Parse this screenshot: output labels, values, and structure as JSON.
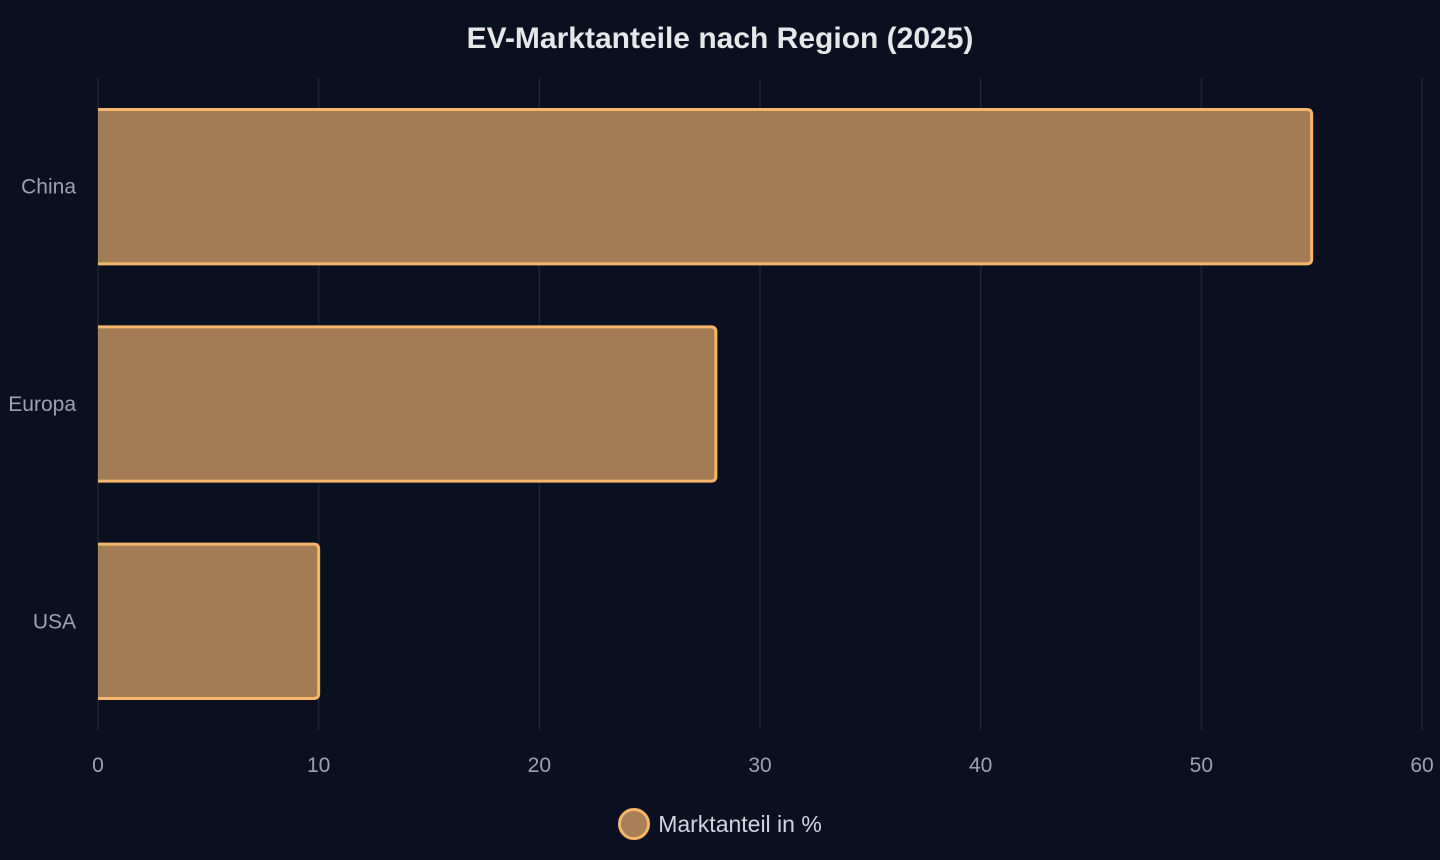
{
  "chart_data": {
    "type": "bar",
    "orientation": "horizontal",
    "title": "EV-Marktanteile nach Region (2025)",
    "categories": [
      "China",
      "Europa",
      "USA"
    ],
    "series": [
      {
        "name": "Marktanteil in %",
        "values": [
          55,
          28,
          10
        ]
      }
    ],
    "xlim": [
      0,
      60
    ],
    "x_ticks": [
      0,
      10,
      20,
      30,
      40,
      50,
      60
    ],
    "grid": true,
    "legend_position": "bottom",
    "colors": {
      "background": "#0b1020",
      "bar_fill": "#a87f56",
      "bar_stroke": "#f5b56b",
      "grid": "#1f2533",
      "tick_text": "#9ca3af",
      "title_text": "#e5e7eb"
    }
  }
}
